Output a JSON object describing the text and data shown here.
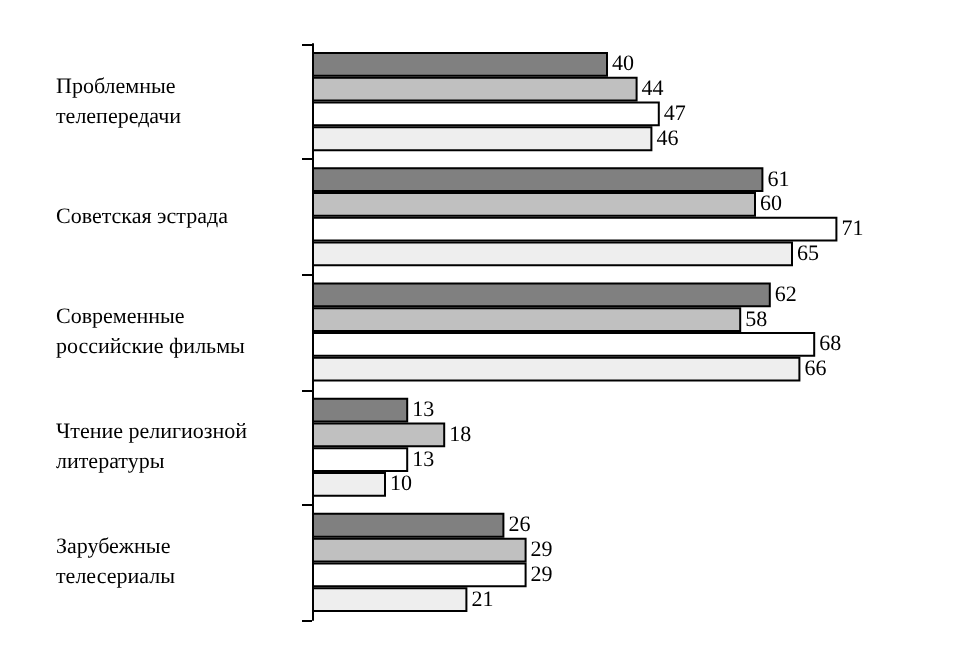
{
  "chart_data": {
    "type": "bar",
    "orientation": "horizontal",
    "categories": [
      "Проблемные телепередачи",
      "Советская эстрада",
      "Современные российские фильмы",
      "Чтение религиозной литературы",
      "Зарубежные телесериалы"
    ],
    "series": [
      {
        "color": "#808080",
        "values": [
          40,
          61,
          62,
          13,
          26
        ]
      },
      {
        "color": "#c0c0c0",
        "values": [
          44,
          60,
          58,
          18,
          29
        ]
      },
      {
        "color": "#ffffff",
        "values": [
          47,
          71,
          68,
          13,
          29
        ]
      },
      {
        "color": "#eeeeee",
        "values": [
          46,
          65,
          66,
          10,
          21
        ]
      }
    ],
    "data_labels": true,
    "tick_labels": "y",
    "grid": false
  }
}
